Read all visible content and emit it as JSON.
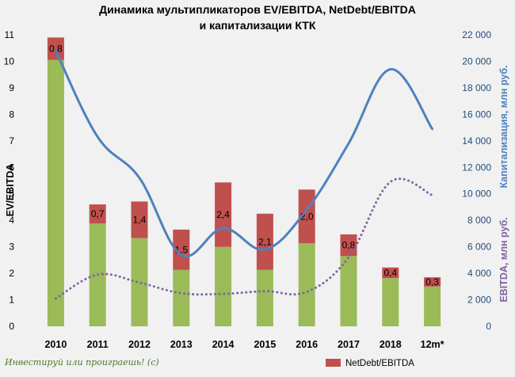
{
  "chart_data": {
    "type": "bar",
    "title_line1": "Динамика мультипликаторов EV/EBITDA, NetDebt/EBITDA",
    "title_line2": "и капитализации КТК",
    "categories": [
      "2010",
      "2011",
      "2012",
      "2013",
      "2014",
      "2015",
      "2016",
      "2017",
      "2018",
      "12m*"
    ],
    "ylabel_left": "EV/EBITDA",
    "ylabel_right_1": "Капитализация, млн руб.",
    "ylabel_right_2": "EBITDA, млн руб.",
    "ylim_left": [
      0,
      11
    ],
    "ylim_right": [
      0,
      22000
    ],
    "left_ticks": [
      "0",
      "1",
      "2",
      "3",
      "4",
      "5",
      "6",
      "7",
      "8",
      "9",
      "10",
      "11"
    ],
    "right_ticks": [
      "0",
      "2 000",
      "4 000",
      "6 000",
      "8 000",
      "10 000",
      "12 000",
      "14 000",
      "16 000",
      "18 000",
      "20 000",
      "22 000"
    ],
    "series": [
      {
        "values": [
          10.05,
          3.88,
          3.33,
          2.13,
          3.0,
          2.13,
          3.13,
          2.65,
          1.82,
          1.5
        ],
        "stack": "ev",
        "color": "#9bbb59"
      },
      {
        "name": "NetDebt/EBITDA",
        "values": [
          0.85,
          0.72,
          1.38,
          1.52,
          2.43,
          2.12,
          2.03,
          0.82,
          0.4,
          0.35
        ],
        "labels": [
          "0,8",
          "0,7",
          "1,4",
          "1,5",
          "2,4",
          "2,1",
          "2,0",
          "0,8",
          "0,4",
          "0,3"
        ],
        "stack": "ev",
        "color": "#c0504d"
      },
      {
        "values": [
          20800,
          14300,
          11200,
          5400,
          7400,
          5800,
          8800,
          13800,
          19400,
          14900
        ],
        "axis": "right",
        "style": "solid",
        "color": "#4f81bd"
      },
      {
        "values": [
          2100,
          3900,
          3300,
          2500,
          2450,
          2650,
          2600,
          5200,
          10900,
          9900
        ],
        "axis": "right",
        "style": "dotted",
        "color": "#8064a2"
      }
    ],
    "legend": {
      "position": "bottom-right",
      "entry": "NetDebt/EBITDA"
    },
    "grid": false,
    "footer_note": "Инвестируй или проиграешь! (с)"
  }
}
